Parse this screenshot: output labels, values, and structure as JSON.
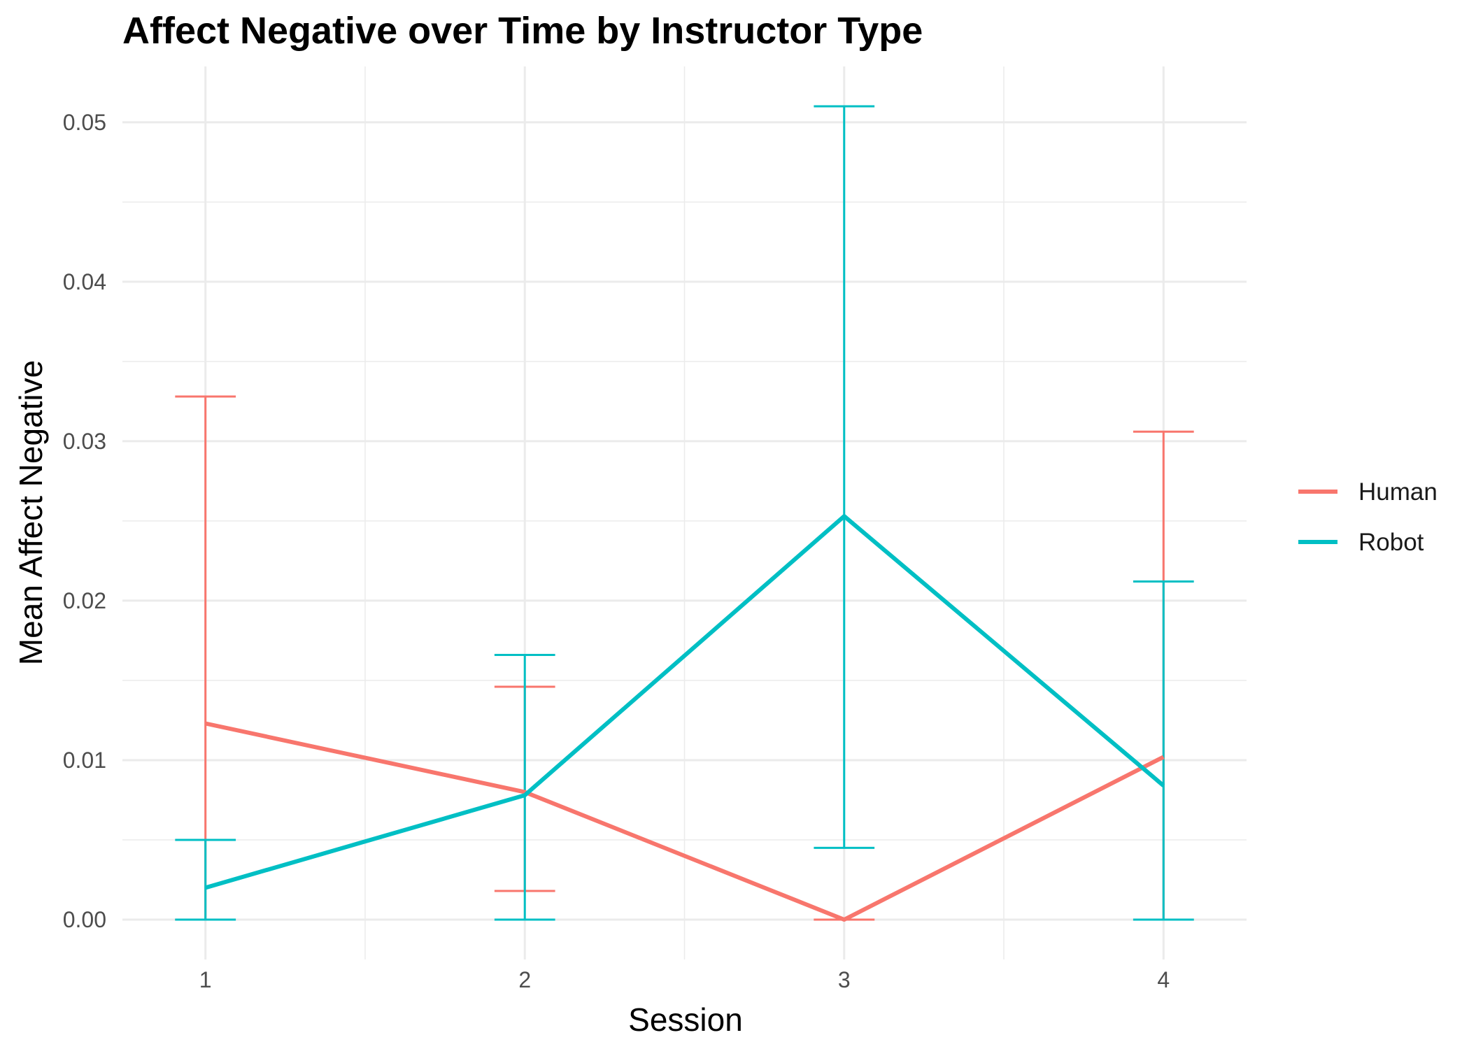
{
  "chart_data": {
    "type": "line",
    "title": "Affect Negative over Time by Instructor Type",
    "xlabel": "Session",
    "ylabel": "Mean Affect Negative",
    "x": [
      1,
      2,
      3,
      4
    ],
    "x_tick_labels": [
      "1",
      "2",
      "3",
      "4"
    ],
    "xlim": [
      0.74,
      4.26
    ],
    "ylim": [
      -0.0025,
      0.0535
    ],
    "y_ticks": [
      0.0,
      0.01,
      0.02,
      0.03,
      0.04,
      0.05
    ],
    "y_tick_labels": [
      "0.00",
      "0.01",
      "0.02",
      "0.03",
      "0.04",
      "0.05"
    ],
    "grid": true,
    "legend_position": "right",
    "series": [
      {
        "name": "Human",
        "color": "#F8766D",
        "values": [
          0.0123,
          0.008,
          0.0,
          0.0102
        ],
        "error_lower": [
          0.0,
          0.0018,
          0.0,
          0.0
        ],
        "error_upper": [
          0.0328,
          0.0146,
          0.0,
          0.0306
        ]
      },
      {
        "name": "Robot",
        "color": "#00BFC4",
        "values": [
          0.002,
          0.0078,
          0.0253,
          0.0084
        ],
        "error_lower": [
          0.0,
          0.0,
          0.0045,
          0.0
        ],
        "error_upper": [
          0.005,
          0.0166,
          0.051,
          0.0212
        ]
      }
    ]
  }
}
